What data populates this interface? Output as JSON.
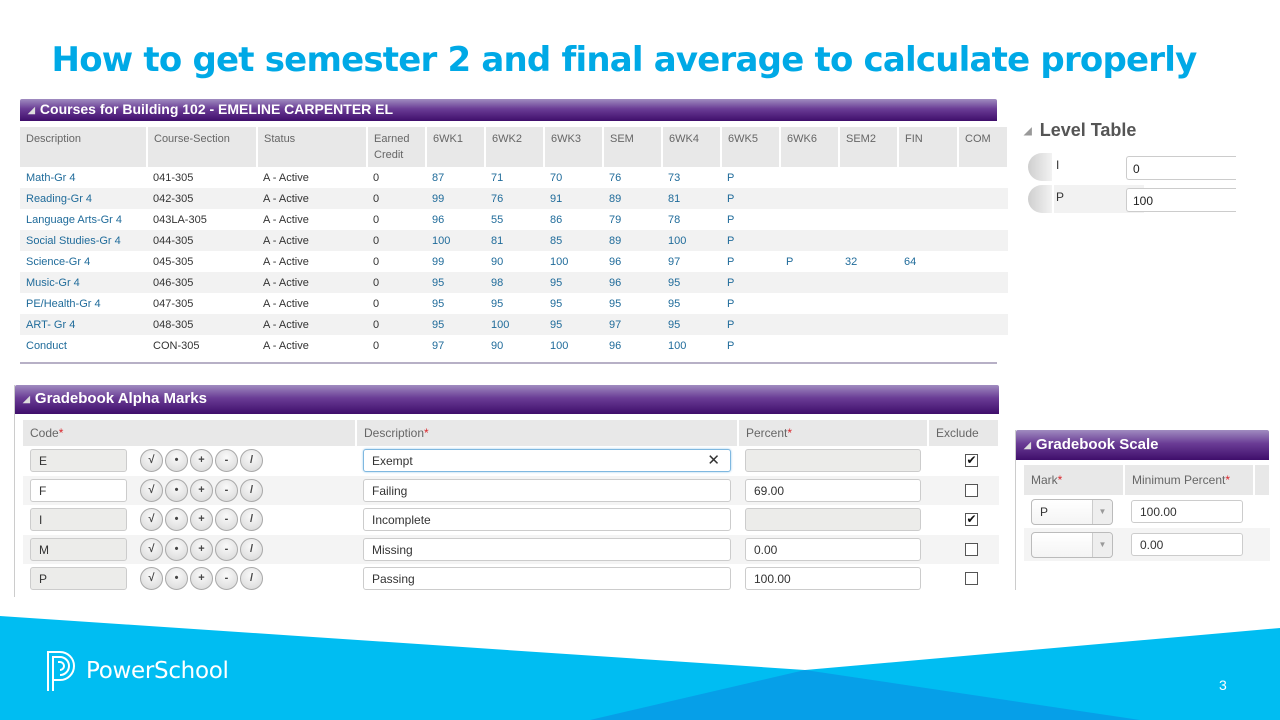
{
  "slide": {
    "title": "How to get semester 2 and final average to calculate properly",
    "page_number": "3",
    "brand": "PowerSchool",
    "colors": {
      "title": "#00a9e6",
      "footer": "#00bdf2",
      "panel_header": "#4b1a7a",
      "link": "#1f6b9a"
    }
  },
  "courses": {
    "title": "Courses for Building 102 - EMELINE CARPENTER EL",
    "columns": [
      "Description",
      "Course-Section",
      "Status",
      "Earned Credit",
      "6WK1",
      "6WK2",
      "6WK3",
      "SEM",
      "6WK4",
      "6WK5",
      "6WK6",
      "SEM2",
      "FIN",
      "COM"
    ],
    "rows": [
      [
        "Math-Gr 4",
        "041-305",
        "A - Active",
        "0",
        "87",
        "71",
        "70",
        "76",
        "73",
        "P",
        "",
        "",
        "",
        ""
      ],
      [
        "Reading-Gr 4",
        "042-305",
        "A - Active",
        "0",
        "99",
        "76",
        "91",
        "89",
        "81",
        "P",
        "",
        "",
        "",
        ""
      ],
      [
        "Language Arts-Gr 4",
        "043LA-305",
        "A - Active",
        "0",
        "96",
        "55",
        "86",
        "79",
        "78",
        "P",
        "",
        "",
        "",
        ""
      ],
      [
        "Social Studies-Gr 4",
        "044-305",
        "A - Active",
        "0",
        "100",
        "81",
        "85",
        "89",
        "100",
        "P",
        "",
        "",
        "",
        ""
      ],
      [
        "Science-Gr 4",
        "045-305",
        "A - Active",
        "0",
        "99",
        "90",
        "100",
        "96",
        "97",
        "P",
        "P",
        "32",
        "64",
        ""
      ],
      [
        "Music-Gr 4",
        "046-305",
        "A - Active",
        "0",
        "95",
        "98",
        "95",
        "96",
        "95",
        "P",
        "",
        "",
        "",
        ""
      ],
      [
        "PE/Health-Gr 4",
        "047-305",
        "A - Active",
        "0",
        "95",
        "95",
        "95",
        "95",
        "95",
        "P",
        "",
        "",
        "",
        ""
      ],
      [
        "ART- Gr 4",
        "048-305",
        "A - Active",
        "0",
        "95",
        "100",
        "95",
        "97",
        "95",
        "P",
        "",
        "",
        "",
        ""
      ],
      [
        "Conduct",
        "CON-305",
        "A - Active",
        "0",
        "97",
        "90",
        "100",
        "96",
        "100",
        "P",
        "",
        "",
        "",
        ""
      ]
    ]
  },
  "level_table": {
    "title": "Level Table",
    "rows": [
      {
        "label": "I",
        "value": "0"
      },
      {
        "label": "P",
        "value": "100"
      }
    ]
  },
  "alpha_marks": {
    "title": "Gradebook Alpha Marks",
    "headers": {
      "code": "Code",
      "description": "Description",
      "percent": "Percent",
      "exclude": "Exclude"
    },
    "modifier_buttons": [
      "√",
      "•",
      "+",
      "-",
      "/"
    ],
    "rows": [
      {
        "code": "E",
        "description": "Exempt",
        "percent": "",
        "exclude": true
      },
      {
        "code": "F",
        "description": "Failing",
        "percent": "69.00",
        "exclude": false
      },
      {
        "code": "I",
        "description": "Incomplete",
        "percent": "",
        "exclude": true
      },
      {
        "code": "M",
        "description": "Missing",
        "percent": "0.00",
        "exclude": false
      },
      {
        "code": "P",
        "description": "Passing",
        "percent": "100.00",
        "exclude": false
      }
    ]
  },
  "gradebook_scale": {
    "title": "Gradebook Scale",
    "headers": {
      "mark": "Mark",
      "min_percent": "Minimum Percent"
    },
    "rows": [
      {
        "mark": "P",
        "min_percent": "100.00"
      },
      {
        "mark": "",
        "min_percent": "0.00"
      }
    ]
  }
}
